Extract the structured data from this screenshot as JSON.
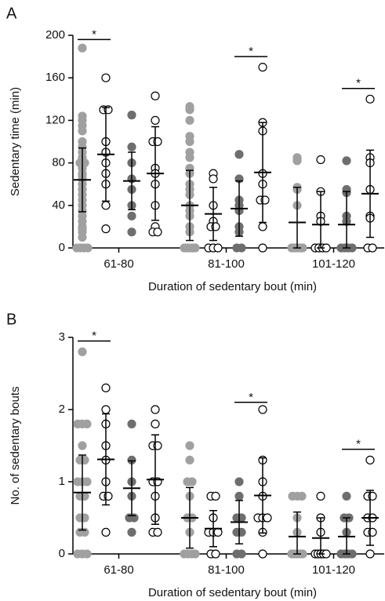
{
  "chart_data": [
    {
      "type": "strip",
      "panel": "A",
      "y_label": "Sedentary time (min)",
      "x_label": "Duration of sedentary bout (min)",
      "categories": [
        "61-80",
        "81-100",
        "101-120"
      ],
      "ylim": [
        0,
        200
      ],
      "yticks": [
        0,
        40,
        80,
        120,
        160,
        200
      ],
      "series": [
        {
          "color": "#a0a0a0",
          "filled": true,
          "values": [
            [
              188,
              124,
              120,
              115,
              110,
              100,
              95,
              90,
              85,
              80,
              80,
              75,
              70,
              68,
              65,
              60,
              55,
              50,
              45,
              40,
              35,
              30,
              25,
              20,
              18,
              15,
              10,
              0,
              0,
              0,
              0
            ],
            [
              133,
              130,
              120,
              105,
              100,
              90,
              85,
              75,
              70,
              60,
              55,
              50,
              40,
              35,
              30,
              20,
              15,
              0,
              0,
              0,
              0,
              0
            ],
            [
              85,
              83,
              82,
              57,
              55,
              40,
              0,
              0,
              0,
              0,
              0,
              0,
              0
            ]
          ],
          "mean": [
            64,
            40,
            24
          ],
          "sd": [
            30,
            33,
            33
          ]
        },
        {
          "color": "#000000",
          "filled": false,
          "values": [
            [
              160,
              130,
              130,
              100,
              90,
              80,
              70,
              60,
              40,
              18
            ],
            [
              70,
              65,
              40,
              25,
              20,
              20,
              0,
              0,
              0
            ],
            [
              83,
              53,
              30,
              25,
              0,
              0,
              0,
              0
            ]
          ],
          "mean": [
            88,
            32,
            22
          ],
          "sd": [
            44,
            25,
            31
          ]
        },
        {
          "color": "#6e6e6e",
          "filled": true,
          "values": [
            [
              125,
              95,
              80,
              65,
              55,
              40,
              30,
              15
            ],
            [
              88,
              65,
              45,
              40,
              35,
              20,
              15,
              0,
              0
            ],
            [
              82,
              55,
              52,
              30,
              25,
              0,
              0,
              0,
              0
            ]
          ],
          "mean": [
            63,
            37,
            22
          ],
          "sd": [
            27,
            26,
            31
          ]
        },
        {
          "color": "#000000",
          "filled": false,
          "values": [
            [
              143,
              120,
              100,
              100,
              75,
              70,
              60,
              40,
              20,
              15,
              15
            ],
            [
              170,
              118,
              110,
              70,
              60,
              45,
              45,
              20,
              0
            ],
            [
              140,
              85,
              80,
              55,
              30,
              28,
              0,
              0
            ]
          ],
          "mean": [
            70,
            71,
            51
          ],
          "sd": [
            44,
            47,
            41
          ]
        }
      ],
      "annotations": [
        {
          "label": "*",
          "y": 196,
          "category": 0,
          "series": [
            0,
            1
          ]
        },
        {
          "label": "*",
          "y": 180,
          "category": 1,
          "series": [
            2,
            3
          ]
        },
        {
          "label": "*",
          "y": 150,
          "category": 2,
          "series": [
            2,
            3
          ]
        }
      ]
    },
    {
      "type": "strip",
      "panel": "B",
      "y_label": "No. of sedentary bouts",
      "x_label": "Duration of sedentary bout (min)",
      "categories": [
        "61-80",
        "81-100",
        "101-120"
      ],
      "ylim": [
        0,
        3
      ],
      "yticks": [
        0,
        1,
        2,
        3
      ],
      "series": [
        {
          "color": "#a0a0a0",
          "filled": true,
          "values": [
            [
              2.8,
              1.8,
              1.8,
              1.8,
              1.5,
              1.3,
              1.3,
              1,
              1,
              1,
              0.8,
              0.8,
              0.5,
              0.5,
              0.3,
              0.3,
              0,
              0,
              0
            ],
            [
              1.5,
              1.3,
              1,
              1,
              0.8,
              0.5,
              0.5,
              0.3,
              0,
              0,
              0,
              0
            ],
            [
              0.8,
              0.8,
              0.8,
              0.5,
              0.3,
              0,
              0,
              0,
              0,
              0
            ]
          ],
          "mean": [
            0.85,
            0.5,
            0.24
          ],
          "sd": [
            0.52,
            0.42,
            0.34
          ]
        },
        {
          "color": "#000000",
          "filled": false,
          "values": [
            [
              2.3,
              2,
              1.8,
              1.5,
              1.3,
              1,
              0.8,
              0.8,
              0.3
            ],
            [
              0.8,
              0.8,
              0.5,
              0.3,
              0.3,
              0.3,
              0,
              0
            ],
            [
              0.8,
              0.5,
              0.3,
              0,
              0,
              0,
              0,
              0
            ]
          ],
          "mean": [
            1.31,
            0.35,
            0.22
          ],
          "sd": [
            0.63,
            0.25,
            0.28
          ]
        },
        {
          "color": "#6e6e6e",
          "filled": true,
          "values": [
            [
              1.8,
              1.3,
              1,
              0.8,
              0.5,
              0.5,
              0.3
            ],
            [
              1,
              0.8,
              0.5,
              0.5,
              0.3,
              0.3,
              0,
              0
            ],
            [
              0.8,
              0.5,
              0.5,
              0.3,
              0,
              0,
              0,
              0
            ]
          ],
          "mean": [
            0.91,
            0.44,
            0.24
          ],
          "sd": [
            0.38,
            0.3,
            0.26
          ]
        },
        {
          "color": "#000000",
          "filled": false,
          "values": [
            [
              2,
              1.8,
              1.5,
              1.5,
              1,
              1,
              0.8,
              0.5,
              0.3,
              0.3
            ],
            [
              2,
              1.3,
              1,
              0.8,
              0.5,
              0.5,
              0.5,
              0.3,
              0
            ],
            [
              1.3,
              0.8,
              0.8,
              0.5,
              0.5,
              0.3,
              0.3,
              0
            ]
          ],
          "mean": [
            1.03,
            0.81,
            0.5
          ],
          "sd": [
            0.62,
            0.52,
            0.38
          ]
        }
      ],
      "annotations": [
        {
          "label": "*",
          "y": 2.95,
          "category": 0,
          "series": [
            0,
            1
          ]
        },
        {
          "label": "*",
          "y": 2.1,
          "category": 1,
          "series": [
            2,
            3
          ]
        },
        {
          "label": "*",
          "y": 1.45,
          "category": 2,
          "series": [
            2,
            3
          ]
        }
      ]
    }
  ]
}
